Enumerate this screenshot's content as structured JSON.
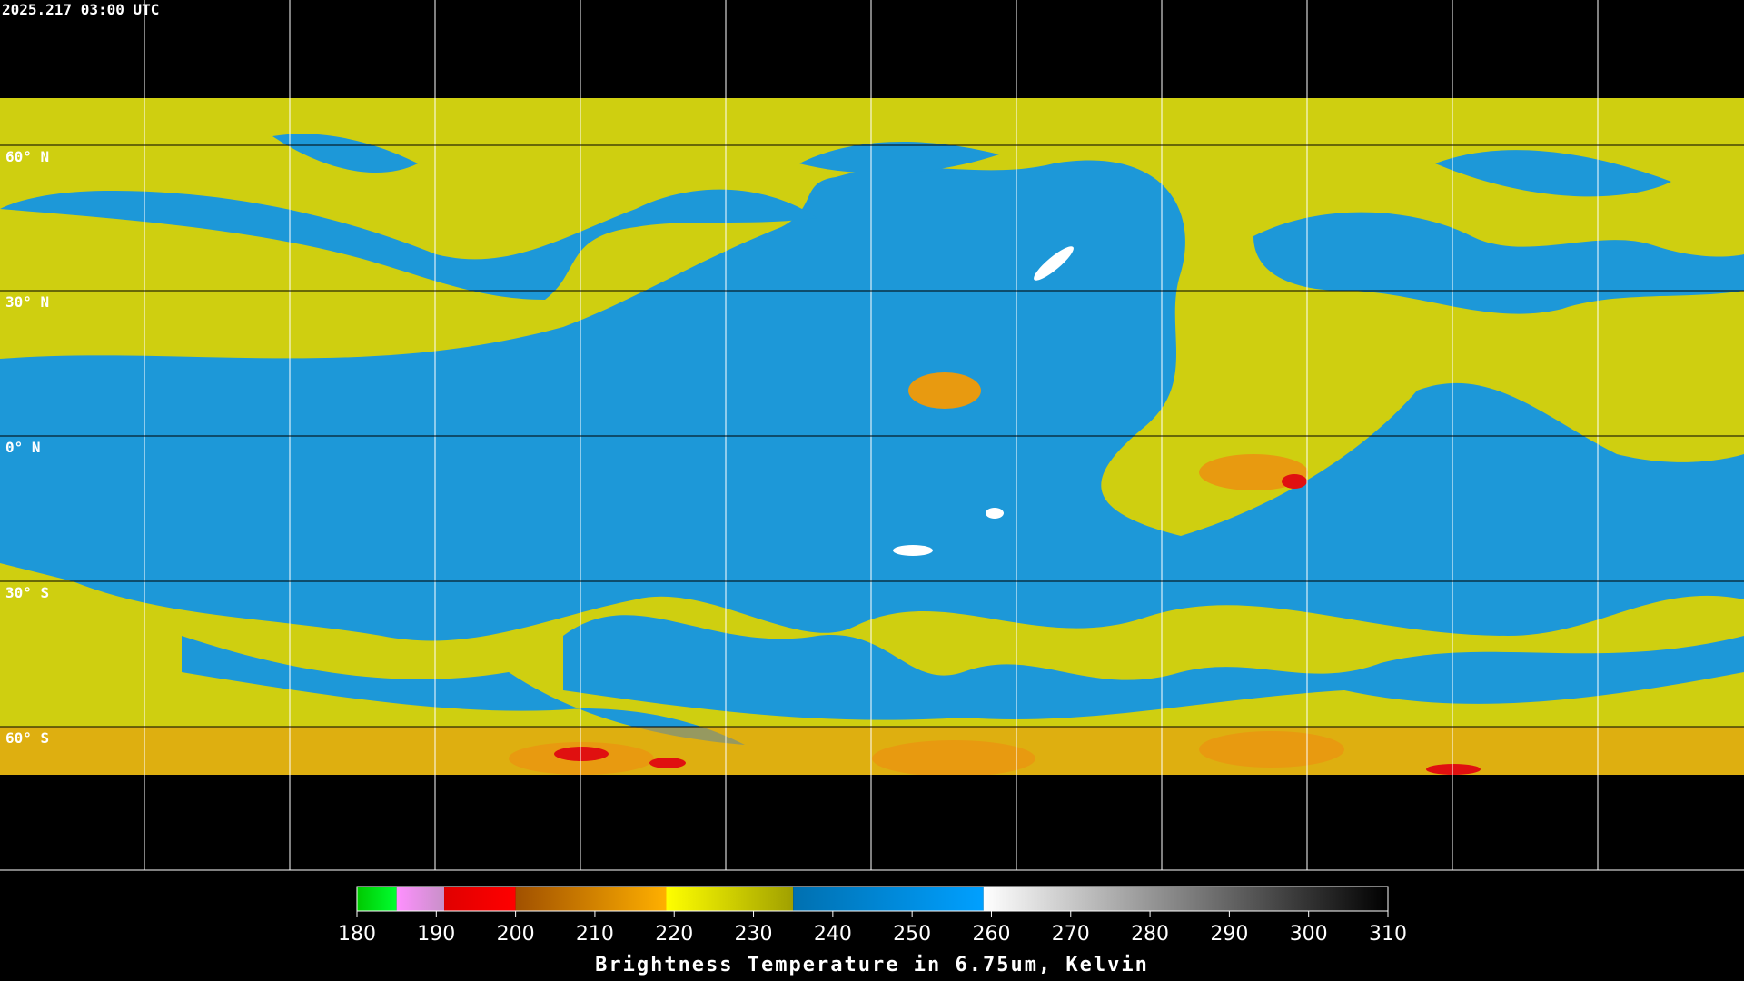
{
  "timestamp": "2025.217 03:00 UTC",
  "latitudes": [
    {
      "value": 60,
      "label": "60° N"
    },
    {
      "value": 30,
      "label": "30° N"
    },
    {
      "value": 0,
      "label": "0° N"
    },
    {
      "value": -30,
      "label": "30° S"
    },
    {
      "value": -60,
      "label": "60° S"
    }
  ],
  "colorbar": {
    "title": "Brightness Temperature in 6.75um, Kelvin",
    "range": [
      180,
      310
    ],
    "ticks": [
      180,
      190,
      200,
      210,
      220,
      230,
      240,
      250,
      260,
      270,
      280,
      290,
      300,
      310
    ],
    "segments": [
      {
        "from": 180,
        "to": 185,
        "colors": [
          "#00c800",
          "#00ff30"
        ]
      },
      {
        "from": 185,
        "to": 191,
        "colors": [
          "#ff90ff",
          "#c890c8"
        ]
      },
      {
        "from": 191,
        "to": 200,
        "colors": [
          "#e00000",
          "#ff0000"
        ]
      },
      {
        "from": 200,
        "to": 219,
        "colors": [
          "#a05000",
          "#ffb000"
        ]
      },
      {
        "from": 219,
        "to": 235,
        "colors": [
          "#ffff00",
          "#a0a000"
        ]
      },
      {
        "from": 235,
        "to": 259,
        "colors": [
          "#0070b0",
          "#00a0ff"
        ]
      },
      {
        "from": 259,
        "to": 310,
        "colors": [
          "#ffffff",
          "#000000"
        ]
      }
    ]
  }
}
